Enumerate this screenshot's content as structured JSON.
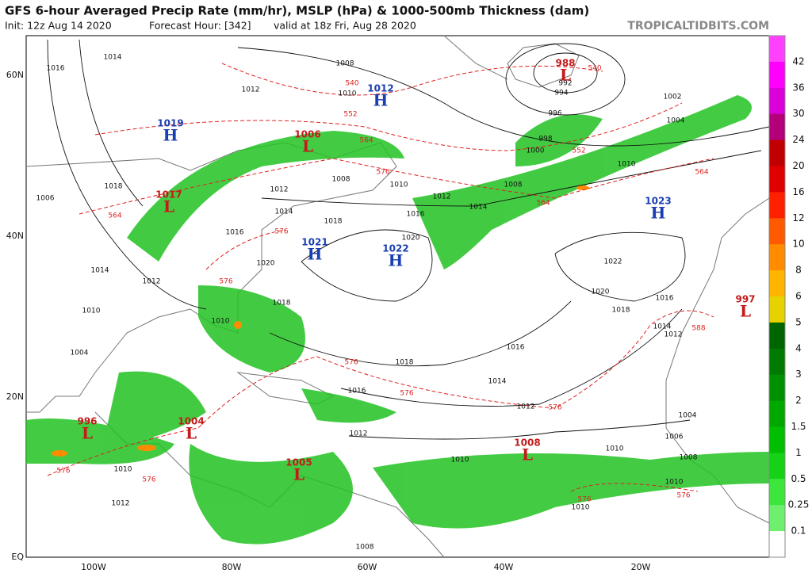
{
  "header": {
    "title": "GFS 6-hour Averaged Precip Rate (mm/hr), MSLP (hPa) & 1000-500mb Thickness (dam)",
    "init": "Init: 12z Aug 14 2020",
    "forecast_hour": "Forecast Hour: [342]",
    "valid": "valid at 18z Fri, Aug 28 2020",
    "site": "TROPICALTIDBITS.COM"
  },
  "map": {
    "lat_labels": [
      "60N",
      "40N",
      "20N",
      "EQ"
    ],
    "lon_labels": [
      "100W",
      "80W",
      "60W",
      "40W",
      "20W"
    ],
    "pressure_centers": [
      {
        "type": "H",
        "value": "1019"
      },
      {
        "type": "L",
        "value": "1006"
      },
      {
        "type": "H",
        "value": "1012"
      },
      {
        "type": "L",
        "value": "988"
      },
      {
        "type": "L",
        "value": "1017"
      },
      {
        "type": "H",
        "value": "1023"
      },
      {
        "type": "H",
        "value": "1021"
      },
      {
        "type": "H",
        "value": "1022"
      },
      {
        "type": "L",
        "value": "997"
      },
      {
        "type": "L",
        "value": "996"
      },
      {
        "type": "L",
        "value": "1004"
      },
      {
        "type": "L",
        "value": "1008"
      },
      {
        "type": "L",
        "value": "1005"
      }
    ],
    "isobar_labels": [
      "1016",
      "1014",
      "1012",
      "1008",
      "1010",
      "1004",
      "1002",
      "1000",
      "998",
      "996",
      "992",
      "994",
      "1010",
      "1008",
      "1012",
      "1014",
      "1016",
      "1018",
      "1020",
      "1022",
      "1020",
      "1018",
      "1016",
      "1014",
      "1012",
      "1016",
      "1018",
      "1016",
      "1014",
      "1012",
      "1012",
      "1010",
      "1010",
      "1006",
      "1004",
      "1008",
      "1010",
      "1010",
      "1008",
      "1012",
      "1010",
      "1014",
      "1012",
      "1010",
      "1004",
      "1010",
      "1018",
      "1020",
      "1014",
      "1012",
      "1016",
      "1008",
      "1010",
      "1018",
      "1006"
    ],
    "thickness_labels": [
      "540",
      "540",
      "552",
      "564",
      "576",
      "552",
      "564",
      "564",
      "576",
      "576",
      "576",
      "576",
      "576",
      "588",
      "576",
      "576",
      "576",
      "576",
      "564"
    ]
  },
  "colorbar": {
    "labels": [
      "42",
      "36",
      "30",
      "24",
      "20",
      "16",
      "12",
      "10",
      "8",
      "6",
      "5",
      "4",
      "3",
      "2",
      "1.5",
      "1",
      "0.5",
      "0.25",
      "0.1"
    ],
    "colors": [
      "#ff40ff",
      "#ff00ff",
      "#d900d9",
      "#b3007a",
      "#c00000",
      "#e00000",
      "#ff2000",
      "#ff5a00",
      "#ff8c00",
      "#ffb400",
      "#e6d200",
      "#006400",
      "#007a00",
      "#009000",
      "#00a800",
      "#00be00",
      "#16d216",
      "#3ce63c",
      "#6ef06e",
      "#ffffff"
    ]
  }
}
